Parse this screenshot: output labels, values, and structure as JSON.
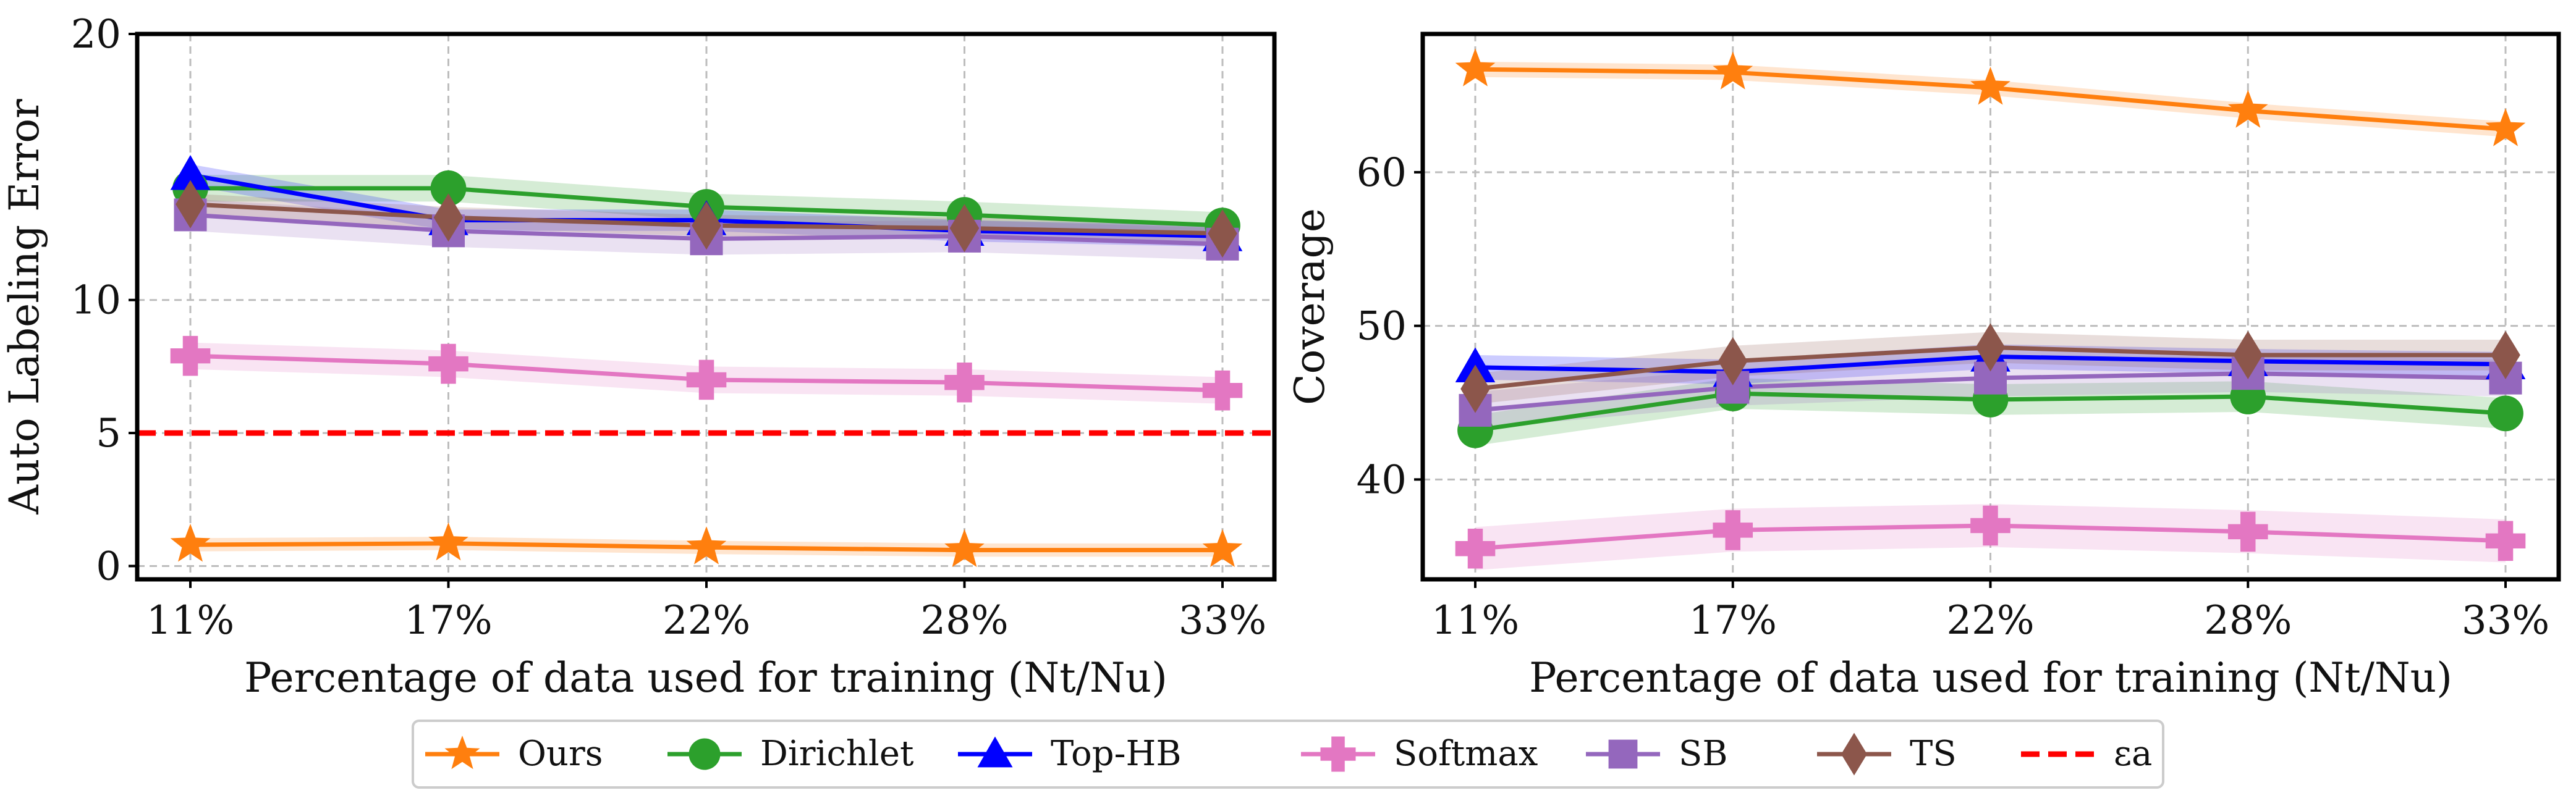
{
  "legend": {
    "items": [
      {
        "key": "ours",
        "label": "Ours"
      },
      {
        "key": "dirichlet",
        "label": "Dirichlet"
      },
      {
        "key": "tophb",
        "label": "Top-HB"
      },
      {
        "key": "softmax",
        "label": "Softmax"
      },
      {
        "key": "sb",
        "label": "SB"
      },
      {
        "key": "ts",
        "label": "TS"
      },
      {
        "key": "eps",
        "label": "εa"
      }
    ]
  },
  "styles": {
    "ours": {
      "color": "#ff7f0e",
      "marker": "star"
    },
    "dirichlet": {
      "color": "#2ca02c",
      "marker": "circle"
    },
    "tophb": {
      "color": "#0000ff",
      "marker": "triangle"
    },
    "softmax": {
      "color": "#e377c2",
      "marker": "plus"
    },
    "sb": {
      "color": "#9467bd",
      "marker": "square"
    },
    "ts": {
      "color": "#8c564b",
      "marker": "diamond"
    },
    "eps": {
      "color": "#ff0000",
      "marker": "dash"
    }
  },
  "chart_data": [
    {
      "type": "line",
      "xlabel": "Percentage of data used for training (Nt/Nu)",
      "ylabel": "Auto Labeling Error",
      "categories": [
        "11%",
        "17%",
        "22%",
        "28%",
        "33%"
      ],
      "ylim": [
        -0.5,
        20
      ],
      "yticks": [
        0,
        5,
        10,
        20
      ],
      "grid": true,
      "series": [
        {
          "key": "ours",
          "name": "Ours",
          "values": [
            0.8,
            0.85,
            0.7,
            0.6,
            0.6
          ],
          "band": 0.25
        },
        {
          "key": "dirichlet",
          "name": "Dirichlet",
          "values": [
            14.2,
            14.2,
            13.5,
            13.2,
            12.8
          ],
          "band": 0.5
        },
        {
          "key": "tophb",
          "name": "Top-HB",
          "values": [
            14.7,
            13.0,
            13.0,
            12.6,
            12.4
          ],
          "band": 0.4
        },
        {
          "key": "softmax",
          "name": "Softmax",
          "values": [
            7.9,
            7.6,
            7.0,
            6.9,
            6.6
          ],
          "band": 0.5
        },
        {
          "key": "sb",
          "name": "SB",
          "values": [
            13.2,
            12.6,
            12.3,
            12.4,
            12.1
          ],
          "band": 0.6
        },
        {
          "key": "ts",
          "name": "TS",
          "values": [
            13.6,
            13.1,
            12.8,
            12.7,
            12.5
          ],
          "band": 0.4
        }
      ],
      "hline": {
        "key": "eps",
        "name": "εa",
        "y": 5
      }
    },
    {
      "type": "line",
      "xlabel": "Percentage of data used for training (Nt/Nu)",
      "ylabel": "Coverage",
      "categories": [
        "11%",
        "17%",
        "22%",
        "28%",
        "33%"
      ],
      "ylim": [
        33.5,
        69
      ],
      "yticks": [
        40,
        50,
        60
      ],
      "grid": true,
      "series": [
        {
          "key": "ours",
          "name": "Ours",
          "values": [
            66.7,
            66.5,
            65.5,
            64.0,
            62.8
          ],
          "band": 0.5
        },
        {
          "key": "dirichlet",
          "name": "Dirichlet",
          "values": [
            43.2,
            45.6,
            45.2,
            45.4,
            44.3
          ],
          "band": 1.0
        },
        {
          "key": "tophb",
          "name": "Top-HB",
          "values": [
            47.3,
            47.0,
            48.0,
            47.7,
            47.5
          ],
          "band": 0.8
        },
        {
          "key": "softmax",
          "name": "Softmax",
          "values": [
            35.5,
            36.7,
            37.0,
            36.6,
            36.0
          ],
          "band": 1.4
        },
        {
          "key": "sb",
          "name": "SB",
          "values": [
            44.5,
            46.0,
            46.6,
            46.9,
            46.6
          ],
          "band": 1.2
        },
        {
          "key": "ts",
          "name": "TS",
          "values": [
            45.9,
            47.7,
            48.6,
            48.1,
            48.1
          ],
          "band": 1.0
        }
      ]
    }
  ]
}
